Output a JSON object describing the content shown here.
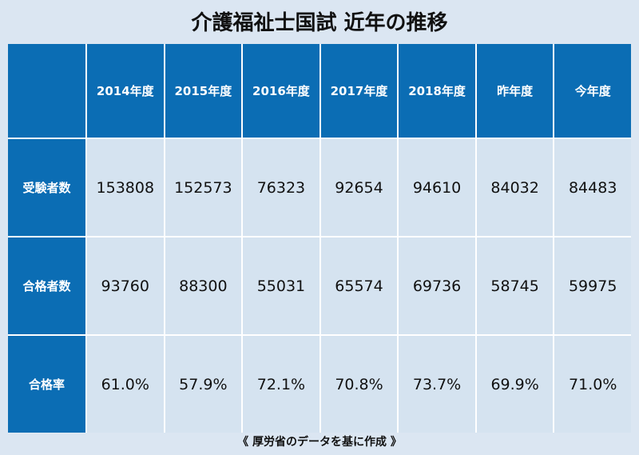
{
  "title": "介護福祉士国試 近年の推移",
  "table": {
    "columns": [
      "2014年度",
      "2015年度",
      "2016年度",
      "2017年度",
      "2018年度",
      "昨年度",
      "今年度"
    ],
    "rows": [
      {
        "label": "受験者数",
        "cells": [
          153808,
          152573,
          76323,
          92654,
          94610,
          84032,
          84483
        ]
      },
      {
        "label": "合格者数",
        "cells": [
          93760,
          88300,
          55031,
          65574,
          69736,
          58745,
          59975
        ]
      },
      {
        "label": "合格率",
        "cells": [
          "61.0%",
          "57.9%",
          "72.1%",
          "70.8%",
          "73.7%",
          "69.9%",
          "71.0%"
        ]
      }
    ]
  },
  "footnote": "《 厚労省のデータを基に作成 》"
}
